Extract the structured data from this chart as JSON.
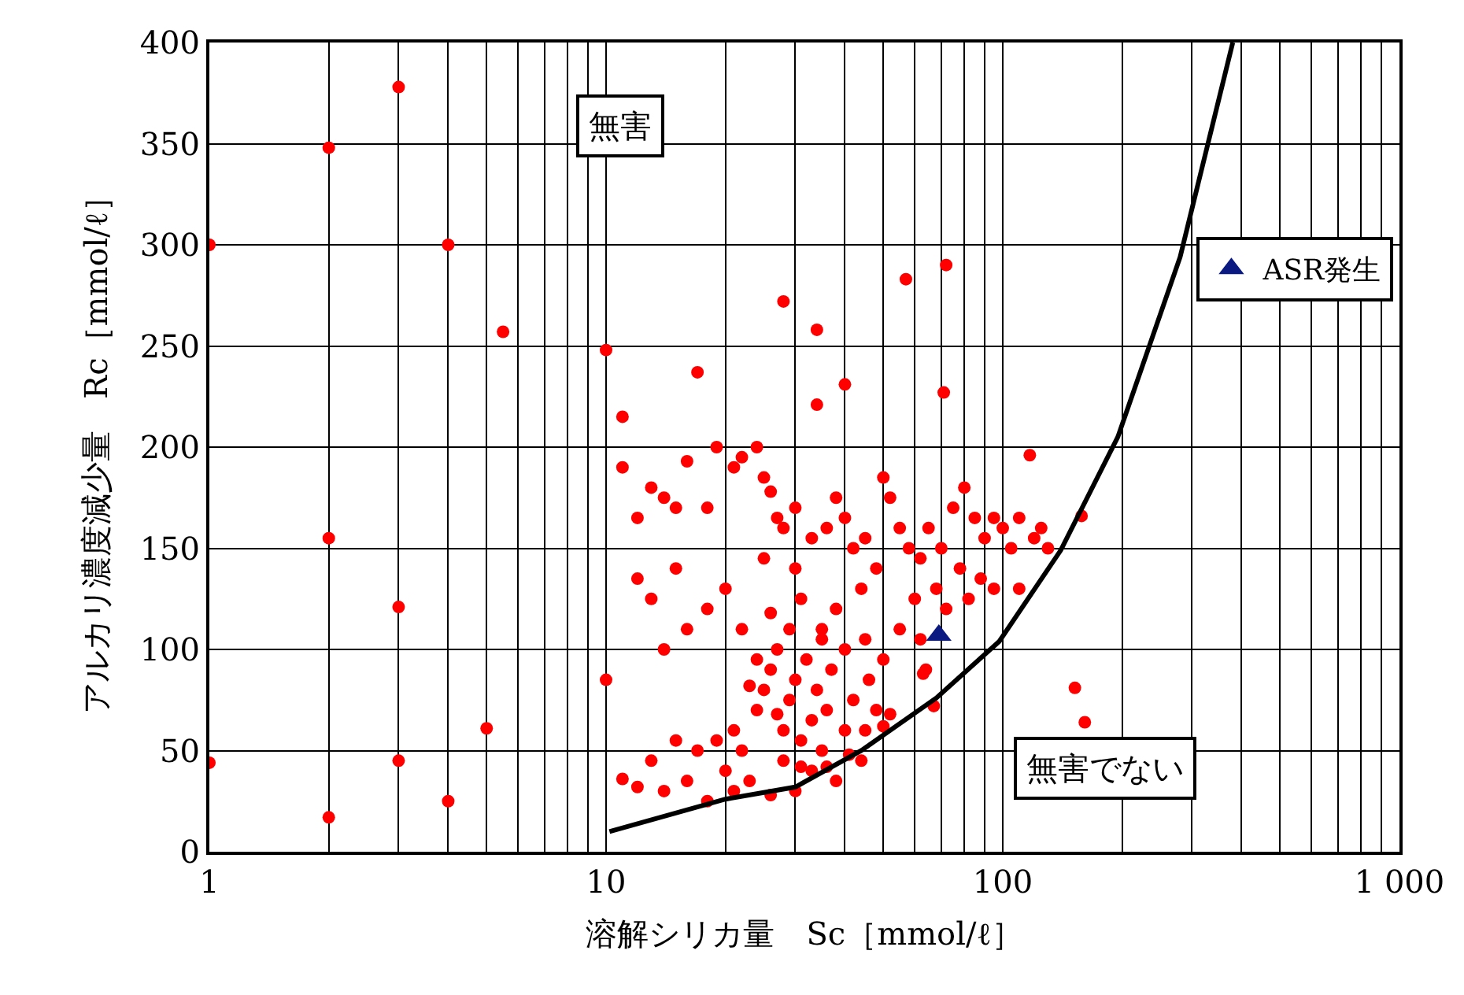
{
  "chart_data": {
    "type": "scatter",
    "xlabel": "溶解シリカ量　Sc［mmol/ℓ］",
    "ylabel": "アルカリ濃度減少量　Rc［mmol/ℓ］",
    "log": "x",
    "grid": true,
    "legend": "right",
    "xlim": [
      1,
      1000
    ],
    "ylim": [
      0,
      400
    ],
    "xticks": [
      1,
      {
        "value": 2,
        "label": null
      },
      {
        "value": 3,
        "label": null
      },
      {
        "value": 4,
        "label": null
      },
      {
        "value": 5,
        "label": null
      },
      {
        "value": 6,
        "label": null
      },
      {
        "value": 7,
        "label": null
      },
      {
        "value": 8,
        "label": null
      },
      {
        "value": 9,
        "label": null
      },
      10,
      {
        "value": 20,
        "label": null
      },
      {
        "value": 30,
        "label": null
      },
      {
        "value": 40,
        "label": null
      },
      {
        "value": 50,
        "label": null
      },
      {
        "value": 60,
        "label": null
      },
      {
        "value": 70,
        "label": null
      },
      {
        "value": 80,
        "label": null
      },
      {
        "value": 90,
        "label": null
      },
      100,
      {
        "value": 200,
        "label": null
      },
      {
        "value": 300,
        "label": null
      },
      {
        "value": 400,
        "label": null
      },
      {
        "value": 500,
        "label": null
      },
      {
        "value": 600,
        "label": null
      },
      {
        "value": 700,
        "label": null
      },
      {
        "value": 800,
        "label": null
      },
      {
        "value": 900,
        "label": null
      },
      {
        "value": 1000,
        "label": "1 000"
      }
    ],
    "yticks": [
      0,
      50,
      100,
      150,
      200,
      250,
      300,
      350,
      400
    ],
    "annotations": [
      "無害",
      "無害でない"
    ],
    "series": [
      {
        "marker": "circle",
        "color": "#ff0000",
        "x": [
          3,
          2,
          1,
          4,
          5.5,
          10,
          2,
          3,
          10,
          5,
          1,
          3,
          2,
          4,
          57,
          72,
          28,
          34,
          17,
          40,
          71,
          34,
          11,
          152,
          161,
          158,
          117,
          11,
          12,
          13,
          14,
          15,
          16,
          18,
          19,
          21,
          22,
          24,
          25,
          26,
          27,
          28,
          30,
          33,
          36,
          38,
          40,
          42,
          45,
          50,
          52,
          55,
          58,
          62,
          65,
          70,
          75,
          80,
          85,
          90,
          95,
          100,
          105,
          110,
          120,
          130,
          125,
          88,
          78,
          68,
          60,
          72,
          82,
          95,
          110,
          48,
          44,
          38,
          30,
          25,
          20,
          18,
          15,
          13,
          12,
          16,
          14,
          22,
          26,
          31,
          35,
          45,
          55,
          64,
          62,
          50,
          20,
          19,
          21,
          22,
          23,
          24,
          25,
          26,
          27,
          28,
          28,
          29,
          30,
          30,
          31,
          32,
          33,
          33,
          34,
          35,
          36,
          37,
          38,
          40,
          42,
          44,
          46,
          48,
          50,
          40,
          35,
          29,
          24,
          17,
          16,
          14,
          13,
          15,
          12,
          11,
          18,
          21,
          26,
          45,
          52,
          41,
          36,
          23,
          27,
          31,
          67,
          63
        ],
        "values": [
          378,
          348,
          300,
          300,
          257,
          248,
          155,
          121,
          85,
          61,
          44,
          45,
          17,
          25,
          283,
          290,
          272,
          258,
          237,
          231,
          227,
          221,
          215,
          81,
          64,
          166,
          196,
          190,
          165,
          180,
          175,
          170,
          193,
          170,
          200,
          190,
          195,
          200,
          185,
          178,
          165,
          160,
          170,
          155,
          160,
          175,
          165,
          150,
          155,
          185,
          175,
          160,
          150,
          145,
          160,
          150,
          170,
          180,
          165,
          155,
          165,
          160,
          150,
          165,
          155,
          150,
          160,
          135,
          140,
          130,
          125,
          120,
          125,
          130,
          130,
          140,
          130,
          120,
          140,
          145,
          130,
          120,
          140,
          125,
          135,
          110,
          100,
          110,
          118,
          125,
          110,
          105,
          110,
          90,
          105,
          95,
          40,
          55,
          60,
          50,
          35,
          70,
          80,
          90,
          100,
          60,
          45,
          75,
          85,
          30,
          55,
          95,
          65,
          40,
          80,
          50,
          70,
          90,
          35,
          60,
          75,
          45,
          85,
          70,
          62,
          100,
          105,
          110,
          95,
          50,
          35,
          30,
          45,
          55,
          32,
          36,
          25,
          30,
          28,
          60,
          68,
          48,
          42,
          82,
          68,
          42,
          72,
          88
        ]
      },
      {
        "type": "scatter",
        "marker": "triangle",
        "name": "ASR発生",
        "color": "#0a1a80",
        "x": [
          69
        ],
        "values": [
          107
        ]
      },
      {
        "type": "line",
        "marker": "none",
        "line_style": "solid",
        "color": "#000000",
        "x": [
          10.2,
          20,
          30,
          44,
          68,
          98,
          140,
          195,
          280,
          380
        ],
        "values": [
          10,
          26,
          32,
          50,
          76,
          104,
          149,
          205,
          294,
          400
        ]
      }
    ]
  }
}
